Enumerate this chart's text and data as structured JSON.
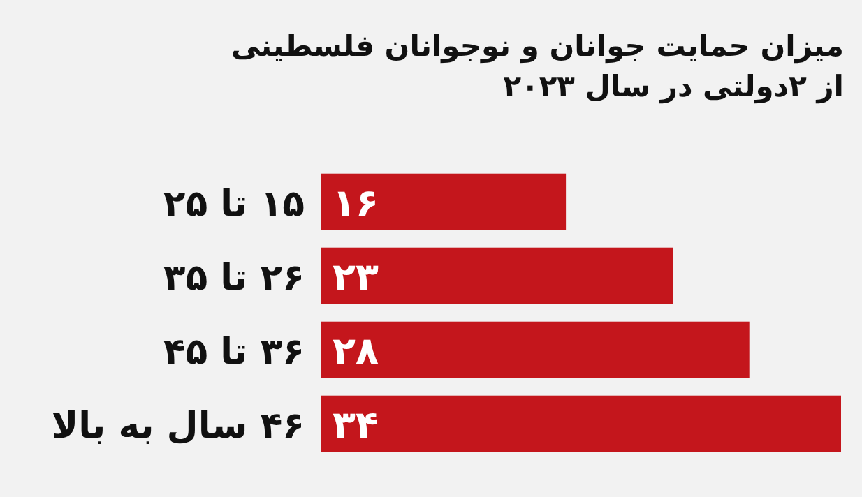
{
  "chart_data": {
    "type": "bar",
    "orientation": "horizontal",
    "title": "میزان حمایت جوانان و نوجوانان  فلسطینی\nاز ۲دولتی در سال ۲۰۲۳",
    "categories": [
      "۱۵ تا ۲۵",
      "۲۶ تا ۳۵",
      "۳۶ تا ۴۵",
      "۴۶ سال به بالا"
    ],
    "values": [
      16,
      23,
      28,
      34
    ],
    "value_labels": [
      "۱۶",
      "۲۳",
      "۲۸",
      "۳۴"
    ],
    "color": "#c4161c"
  }
}
